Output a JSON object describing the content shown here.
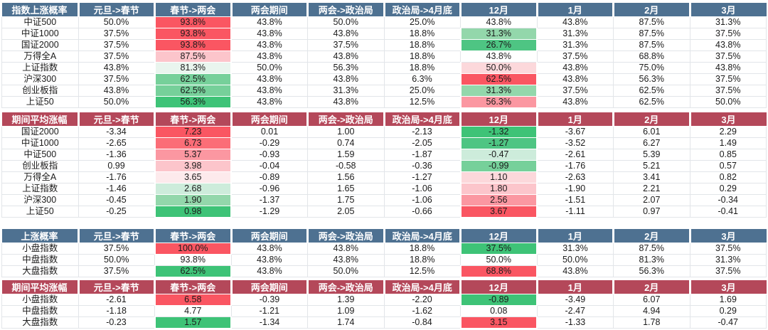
{
  "palette": {
    "header_blue": "#4e7191",
    "header_red": "#b4485a",
    "text_dark": "#1b1b1b",
    "grid_line": "#e2e5e9",
    "r1": "#fa5662",
    "r2": "#fb6d77",
    "r3": "#fb97a1",
    "r4": "#fcc5cb",
    "r5": "#fcd8db",
    "r6": "#fdeaec",
    "g1": "#3ec377",
    "g1b": "#4ec583",
    "g2": "#76d09a",
    "g3": "#93d7ab",
    "g4": "#cdecdb",
    "g5": "#e9f5ee"
  },
  "chart_data": {
    "type": "table",
    "columns": [
      "元旦->春节",
      "春节->两会",
      "两会期间",
      "两会->政治局",
      "政治局->4月底",
      "12月",
      "1月",
      "2月",
      "3月"
    ],
    "sections": [
      {
        "id": "index-rise-probability",
        "title": "指数上涨概率",
        "theme": "blue",
        "rows": [
          {
            "label": "中证500",
            "values": [
              "50.0%",
              "93.8%",
              "43.8%",
              "50.0%",
              "25.0%",
              "43.8%",
              "43.8%",
              "87.5%",
              "31.3%"
            ],
            "colors": [
              "",
              "r1",
              "",
              "",
              "",
              "",
              "",
              "",
              ""
            ]
          },
          {
            "label": "中证1000",
            "values": [
              "37.5%",
              "93.8%",
              "43.8%",
              "43.8%",
              "18.8%",
              "31.3%",
              "31.3%",
              "87.5%",
              "37.5%"
            ],
            "colors": [
              "",
              "r1",
              "",
              "",
              "",
              "g3",
              "",
              "",
              ""
            ]
          },
          {
            "label": "国证2000",
            "values": [
              "37.5%",
              "93.8%",
              "43.8%",
              "37.5%",
              "18.8%",
              "26.7%",
              "31.3%",
              "87.5%",
              "43.8%"
            ],
            "colors": [
              "",
              "r1",
              "",
              "",
              "",
              "g1b",
              "",
              "",
              ""
            ]
          },
          {
            "label": "万得全A",
            "values": [
              "37.5%",
              "87.5%",
              "43.8%",
              "43.8%",
              "18.8%",
              "43.8%",
              "37.5%",
              "68.8%",
              "37.5%"
            ],
            "colors": [
              "",
              "r4",
              "",
              "",
              "",
              "",
              "",
              "",
              ""
            ]
          },
          {
            "label": "上证指数",
            "values": [
              "43.8%",
              "81.3%",
              "50.0%",
              "56.3%",
              "18.8%",
              "50.0%",
              "43.8%",
              "75.0%",
              "43.8%"
            ],
            "colors": [
              "",
              "g5",
              "",
              "",
              "",
              "r5",
              "",
              "",
              ""
            ]
          },
          {
            "label": "沪深300",
            "values": [
              "37.5%",
              "62.5%",
              "43.8%",
              "43.8%",
              "6.3%",
              "62.5%",
              "43.8%",
              "56.3%",
              "37.5%"
            ],
            "colors": [
              "",
              "g2",
              "",
              "",
              "",
              "r1",
              "",
              "",
              ""
            ]
          },
          {
            "label": "创业板指",
            "values": [
              "43.8%",
              "62.5%",
              "43.8%",
              "31.3%",
              "25.0%",
              "31.3%",
              "37.5%",
              "62.5%",
              "37.5%"
            ],
            "colors": [
              "",
              "g2",
              "",
              "",
              "",
              "g3",
              "",
              "",
              ""
            ]
          },
          {
            "label": "上证50",
            "values": [
              "50.0%",
              "56.3%",
              "43.8%",
              "43.8%",
              "12.5%",
              "56.3%",
              "43.8%",
              "62.5%",
              "50.0%"
            ],
            "colors": [
              "",
              "g1",
              "",
              "",
              "",
              "r3",
              "",
              "",
              ""
            ]
          }
        ]
      },
      {
        "id": "period-average-gain",
        "title": "期间平均涨幅",
        "theme": "red",
        "rows": [
          {
            "label": "国证2000",
            "values": [
              "-3.34",
              "7.23",
              "0.01",
              "1.00",
              "-2.13",
              "-1.32",
              "-3.67",
              "6.01",
              "2.29"
            ],
            "colors": [
              "",
              "r1",
              "",
              "",
              "",
              "g1",
              "",
              "",
              ""
            ]
          },
          {
            "label": "中证1000",
            "values": [
              "-2.65",
              "6.73",
              "-0.29",
              "0.74",
              "-2.05",
              "-1.27",
              "-3.52",
              "6.27",
              "1.49"
            ],
            "colors": [
              "",
              "r2",
              "",
              "",
              "",
              "g1b",
              "",
              "",
              ""
            ]
          },
          {
            "label": "中证500",
            "values": [
              "-1.36",
              "5.37",
              "-0.93",
              "1.59",
              "-1.87",
              "-0.47",
              "-2.61",
              "5.39",
              "0.85"
            ],
            "colors": [
              "",
              "r3",
              "",
              "",
              "",
              "g4",
              "",
              "",
              ""
            ]
          },
          {
            "label": "创业板指",
            "values": [
              "0.99",
              "3.98",
              "-0.04",
              "-0.58",
              "-0.36",
              "-0.99",
              "-1.76",
              "5.21",
              "0.57"
            ],
            "colors": [
              "",
              "r4",
              "",
              "",
              "",
              "g2",
              "",
              "",
              ""
            ]
          },
          {
            "label": "万得全A",
            "values": [
              "-1.76",
              "3.65",
              "-0.89",
              "1.56",
              "-1.27",
              "1.10",
              "-2.63",
              "3.41",
              "0.82"
            ],
            "colors": [
              "",
              "r6",
              "",
              "",
              "",
              "r5",
              "",
              "",
              ""
            ]
          },
          {
            "label": "上证指数",
            "values": [
              "-1.46",
              "2.68",
              "-0.96",
              "1.65",
              "-1.06",
              "1.80",
              "-1.90",
              "2.21",
              "0.29"
            ],
            "colors": [
              "",
              "g4",
              "",
              "",
              "",
              "r4",
              "",
              "",
              ""
            ]
          },
          {
            "label": "沪深300",
            "values": [
              "-0.45",
              "1.90",
              "-1.37",
              "1.75",
              "-1.06",
              "2.56",
              "-1.51",
              "2.07",
              "-0.34"
            ],
            "colors": [
              "",
              "g3",
              "",
              "",
              "",
              "r3",
              "",
              "",
              ""
            ]
          },
          {
            "label": "上证50",
            "values": [
              "-0.25",
              "0.98",
              "-1.29",
              "2.05",
              "-0.66",
              "3.67",
              "-1.11",
              "0.97",
              "-0.41"
            ],
            "colors": [
              "",
              "g1",
              "",
              "",
              "",
              "r1",
              "",
              "",
              ""
            ]
          }
        ]
      },
      {
        "id": "rise-probability-by-size",
        "title": "上涨概率",
        "theme": "blue",
        "rows": [
          {
            "label": "小盘指数",
            "values": [
              "37.5%",
              "100.0%",
              "43.8%",
              "43.8%",
              "18.8%",
              "37.5%",
              "31.3%",
              "87.5%",
              "37.5%"
            ],
            "colors": [
              "",
              "r1",
              "",
              "",
              "",
              "g1",
              "",
              "",
              ""
            ]
          },
          {
            "label": "中盘指数",
            "values": [
              "50.0%",
              "93.8%",
              "43.8%",
              "43.8%",
              "18.8%",
              "50.0%",
              "50.0%",
              "81.3%",
              "31.3%"
            ],
            "colors": [
              "",
              "",
              "",
              "",
              "",
              "",
              "",
              "",
              ""
            ]
          },
          {
            "label": "大盘指数",
            "values": [
              "37.5%",
              "62.5%",
              "43.8%",
              "50.0%",
              "12.5%",
              "68.8%",
              "43.8%",
              "56.3%",
              "37.5%"
            ],
            "colors": [
              "",
              "g1",
              "",
              "",
              "",
              "r1",
              "",
              "",
              ""
            ]
          }
        ]
      },
      {
        "id": "period-average-gain-by-size",
        "title": "期间平均涨幅",
        "theme": "red",
        "rows": [
          {
            "label": "小盘指数",
            "values": [
              "-2.61",
              "6.58",
              "-0.39",
              "1.39",
              "-2.20",
              "-0.89",
              "-3.49",
              "6.07",
              "1.69"
            ],
            "colors": [
              "",
              "r1",
              "",
              "",
              "",
              "g1",
              "",
              "",
              ""
            ]
          },
          {
            "label": "中盘指数",
            "values": [
              "-1.18",
              "4.77",
              "-1.21",
              "1.09",
              "-1.62",
              "0.08",
              "-2.47",
              "4.94",
              "0.29"
            ],
            "colors": [
              "",
              "",
              "",
              "",
              "",
              "",
              "",
              "",
              ""
            ]
          },
          {
            "label": "大盘指数",
            "values": [
              "-0.23",
              "1.57",
              "-1.34",
              "1.74",
              "-0.84",
              "3.15",
              "-1.33",
              "1.78",
              "-0.47"
            ],
            "colors": [
              "",
              "g1",
              "",
              "",
              "",
              "r1",
              "",
              "",
              ""
            ]
          }
        ]
      }
    ]
  }
}
